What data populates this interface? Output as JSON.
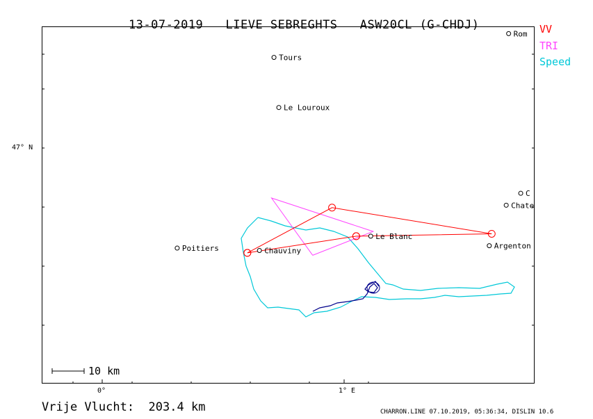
{
  "header": {
    "date": "13-07-2019",
    "pilot": "LIEVE SEBREGHTS",
    "glider": "ASW20CL (G-CHDJ)"
  },
  "legend": {
    "vv": {
      "label": "VV",
      "color": "#ff0000"
    },
    "tri": {
      "label": "TRI",
      "color": "#ff44ff"
    },
    "speed": {
      "label": "Speed",
      "color": "#00c8d8"
    }
  },
  "axes": {
    "lat_label": "47° N",
    "lon_label_0": "0°",
    "lon_label_1": "1° E"
  },
  "towns": [
    {
      "name": "Tours",
      "lon": 0.71,
      "lat": 47.38
    },
    {
      "name": "Le Louroux",
      "lon": 0.73,
      "lat": 47.17
    },
    {
      "name": "Rom",
      "lon": 1.68,
      "lat": 47.48
    },
    {
      "name": "C",
      "lon": 1.73,
      "lat": 46.81
    },
    {
      "name": "Chateau",
      "lon": 1.67,
      "lat": 46.76
    },
    {
      "name": "Poitiers",
      "lon": 0.31,
      "lat": 46.58
    },
    {
      "name": "Chauviny",
      "lon": 0.65,
      "lat": 46.57
    },
    {
      "name": "Le Blanc",
      "lon": 1.11,
      "lat": 46.63
    },
    {
      "name": "Argenton",
      "lon": 1.6,
      "lat": 46.59
    }
  ],
  "flight": {
    "vv_turnpoints": [
      {
        "lon": 1.05,
        "lat": 46.63
      },
      {
        "lon": 0.6,
        "lat": 46.56
      },
      {
        "lon": 0.6,
        "lat": 46.56
      },
      {
        "lon": 0.95,
        "lat": 46.75
      },
      {
        "lon": 1.61,
        "lat": 46.64
      },
      {
        "lon": 1.05,
        "lat": 46.63
      }
    ],
    "tri_points": [
      {
        "lon": 0.87,
        "lat": 46.55
      },
      {
        "lon": 0.7,
        "lat": 46.79
      },
      {
        "lon": 1.12,
        "lat": 46.65
      },
      {
        "lon": 0.87,
        "lat": 46.55
      }
    ]
  },
  "scalebar": {
    "label": "10 km"
  },
  "distance": {
    "label": "Vrije Vlucht:",
    "value": "203.4 km"
  },
  "footer": "CHARRON.LINE 07.10.2019, 05:36:34, DISLIN 10.6"
}
